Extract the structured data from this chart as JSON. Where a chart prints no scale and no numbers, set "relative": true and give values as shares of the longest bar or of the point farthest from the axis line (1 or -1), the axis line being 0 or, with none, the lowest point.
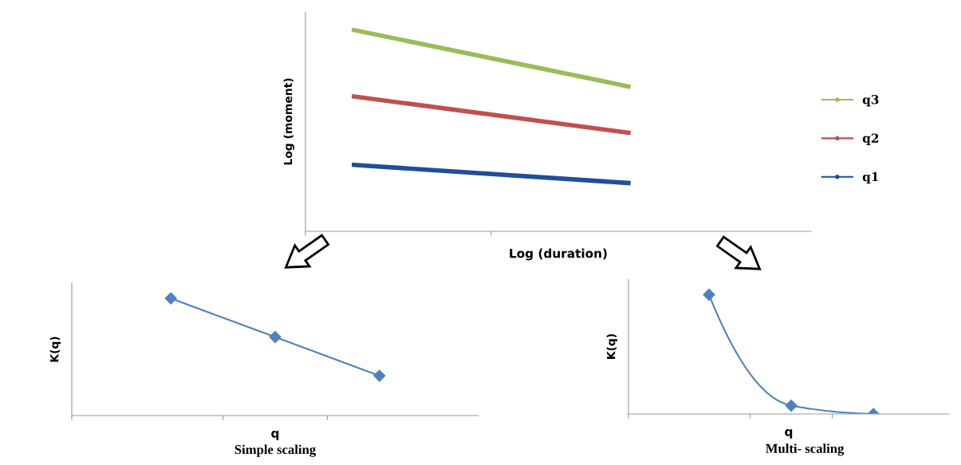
{
  "chart_data": [
    {
      "type": "line",
      "relative": true,
      "categories": [
        null,
        null
      ],
      "xlabel": "Log (duration)",
      "ylabel": "Log (moment)",
      "legend": "right",
      "grid": false,
      "tick_labels": false,
      "series": [
        {
          "name": "q3",
          "color": "#9bbb59",
          "values": [
            1,
            0.72
          ]
        },
        {
          "name": "q2",
          "color": "#c0504d",
          "values": [
            0.67,
            0.49
          ]
        },
        {
          "name": "q1",
          "color": "#1f4e9a",
          "values": [
            0.33,
            0.24
          ]
        }
      ]
    },
    {
      "type": "line",
      "relative": true,
      "categories": [
        null,
        null,
        null
      ],
      "xlabel": "q",
      "ylabel": "K(q)",
      "marker": "diamond",
      "grid": false,
      "tick_labels": false,
      "annotations": [
        "Simple scaling"
      ],
      "series": [
        {
          "color": "#4f81bd",
          "values": [
            1,
            0.67,
            0.34
          ]
        }
      ]
    },
    {
      "type": "line",
      "relative": true,
      "categories": [
        null,
        null,
        null
      ],
      "xlabel": "q",
      "ylabel": "K(q)",
      "marker": "diamond",
      "grid": false,
      "tick_labels": false,
      "annotations": [
        "Multi- scaling"
      ],
      "series": [
        {
          "color": "#4f81bd",
          "values": [
            1,
            0.07,
            0
          ]
        }
      ]
    }
  ]
}
